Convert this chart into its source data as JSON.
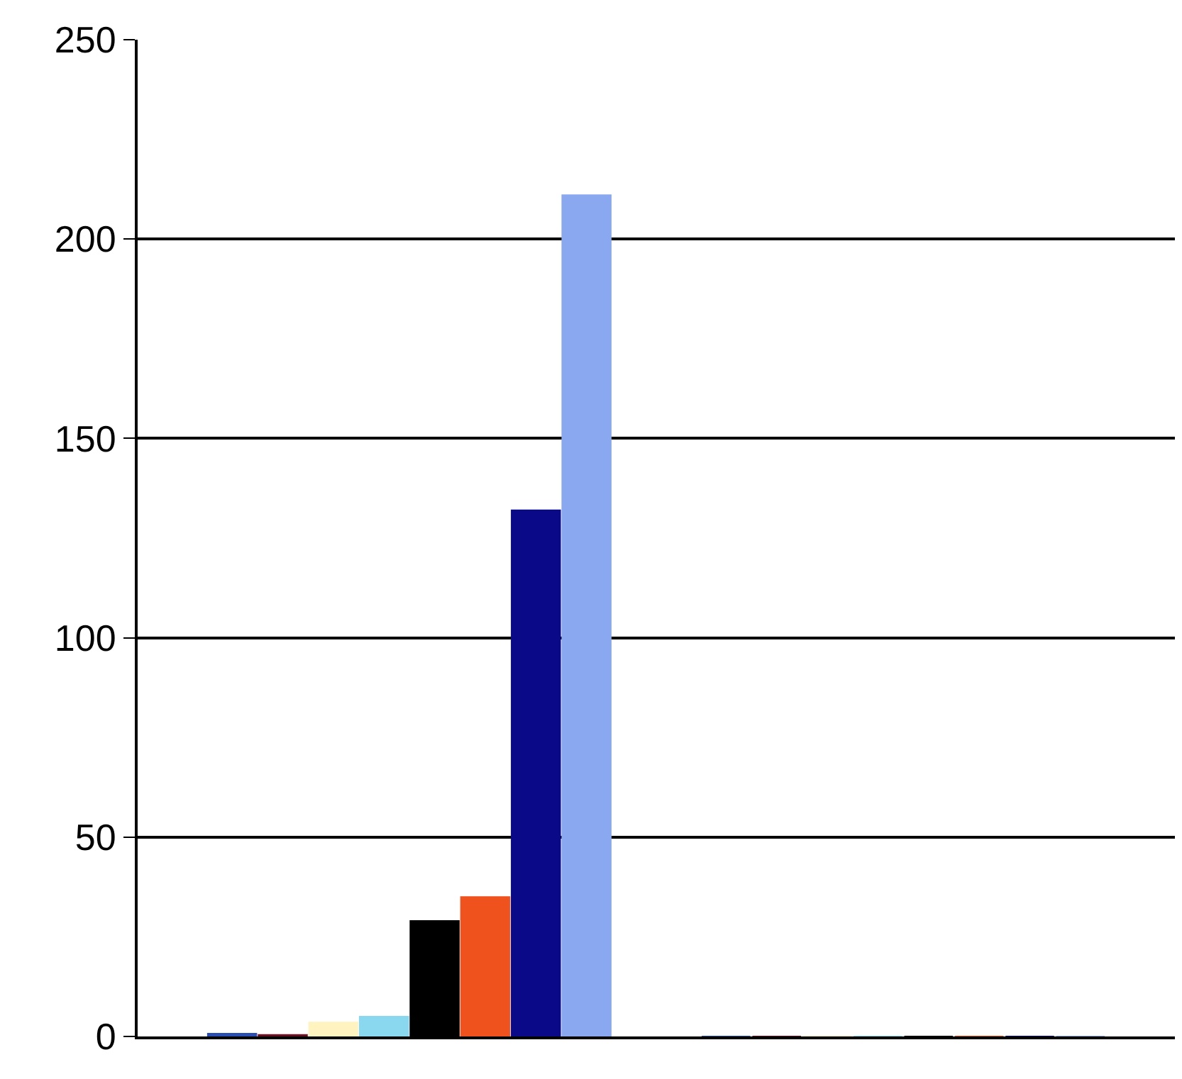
{
  "chart_data": {
    "type": "bar",
    "categories": [
      null,
      null
    ],
    "series": [
      {
        "color": "#2a4fb0",
        "values": [
          0.7,
          0
        ]
      },
      {
        "color": "#6a1020",
        "values": [
          0.4,
          0
        ]
      },
      {
        "color": "#fff3c0",
        "values": [
          3.5,
          0
        ]
      },
      {
        "color": "#8ad8f0",
        "values": [
          5,
          0
        ]
      },
      {
        "color": "#000000",
        "values": [
          29,
          0
        ]
      },
      {
        "color": "#f0521e",
        "values": [
          35,
          0
        ]
      },
      {
        "color": "#0a0a88",
        "values": [
          132,
          0
        ]
      },
      {
        "color": "#8aa8f0",
        "values": [
          211,
          0
        ]
      }
    ],
    "ylim": [
      0,
      250
    ],
    "yticks": [
      0,
      50,
      100,
      150,
      200,
      250
    ],
    "grid": "y"
  }
}
